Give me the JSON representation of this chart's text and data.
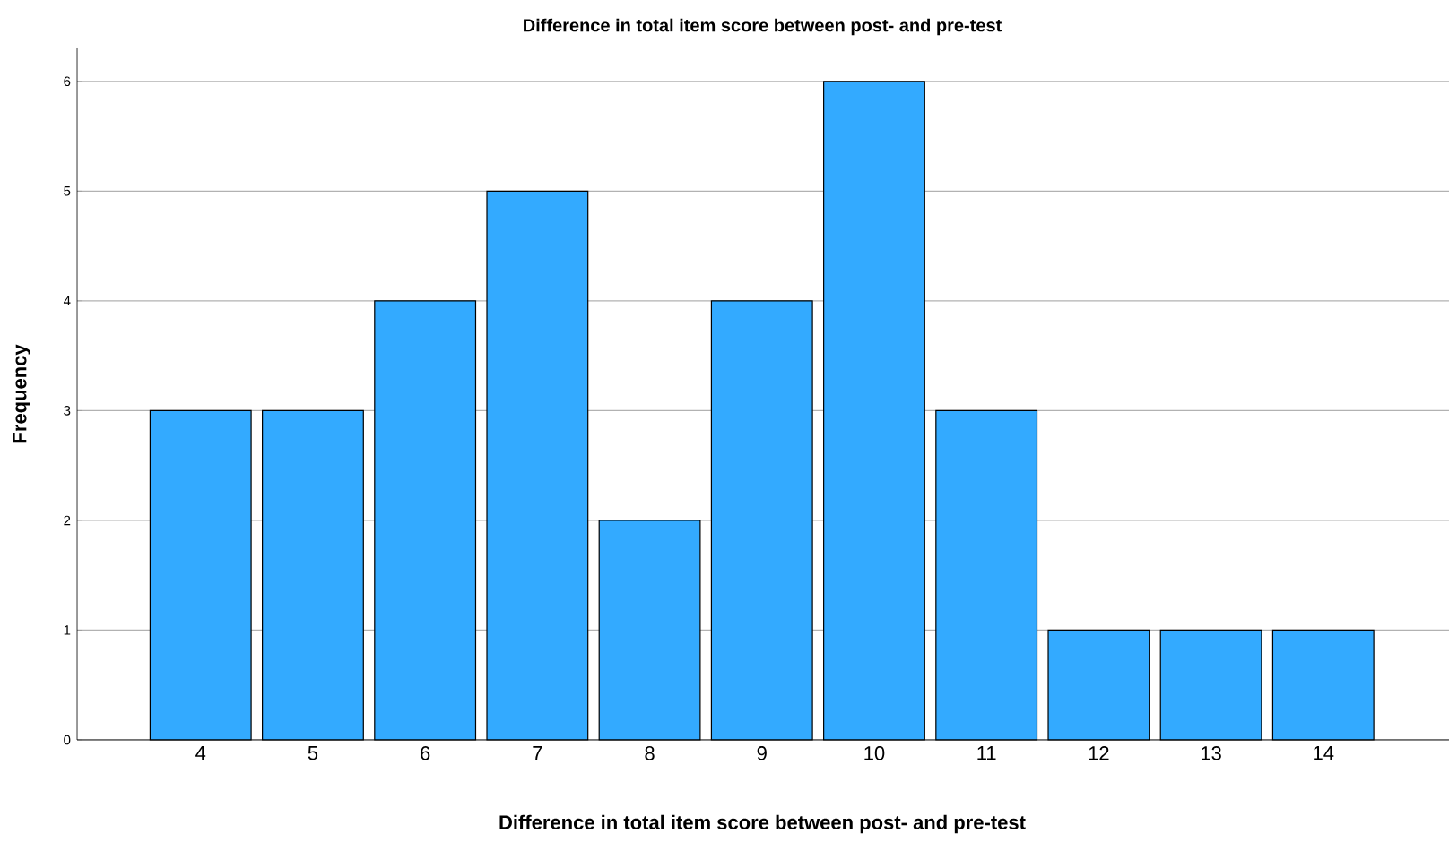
{
  "chart_data": {
    "type": "bar",
    "title": "Difference in total item score between post- and pre-test",
    "xlabel": "Difference in total item score between post- and pre-test",
    "ylabel": "Frequency",
    "categories": [
      "4",
      "5",
      "6",
      "7",
      "8",
      "9",
      "10",
      "11",
      "12",
      "13",
      "14"
    ],
    "values": [
      3,
      3,
      4,
      5,
      2,
      4,
      6,
      3,
      1,
      1,
      1
    ],
    "color": "#33aaff",
    "ylim": [
      0,
      6.3
    ],
    "yticks": [
      0,
      1,
      2,
      3,
      4,
      5,
      6
    ],
    "grid": "y"
  }
}
